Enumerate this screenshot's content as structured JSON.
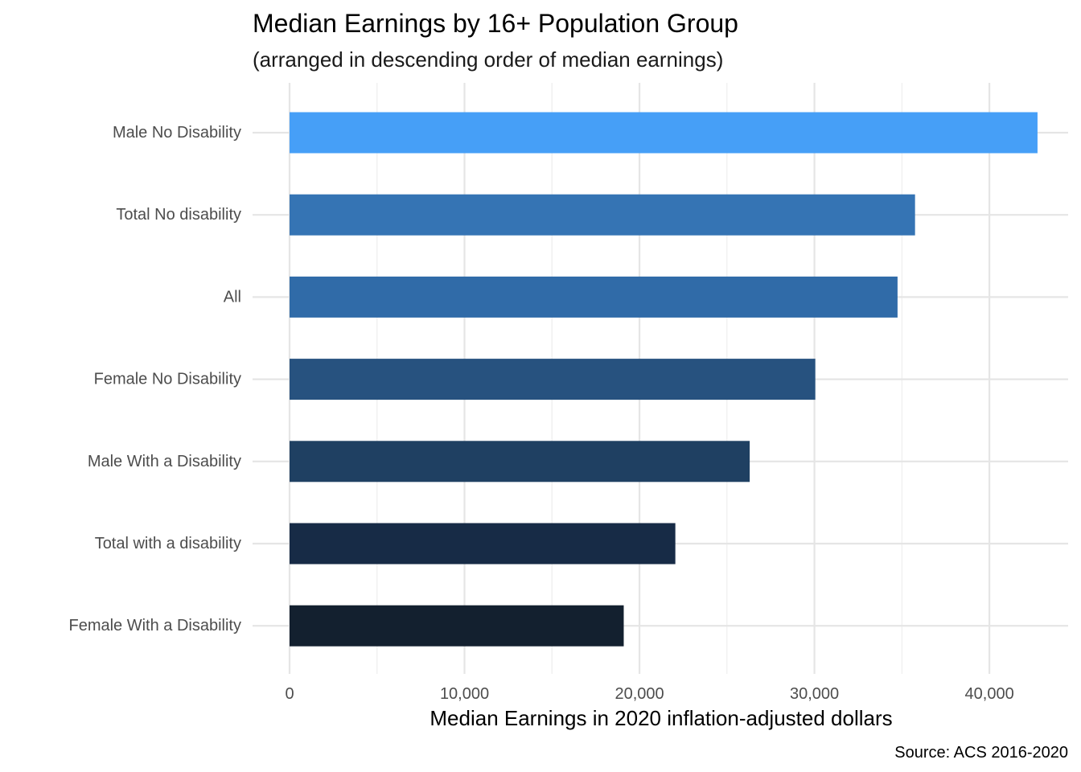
{
  "chart_data": {
    "type": "bar",
    "orientation": "horizontal",
    "title": "Median Earnings by 16+ Population Group",
    "subtitle": "(arranged in descending order of median earnings)",
    "xlabel": "Median Earnings in 2020 inflation-adjusted dollars",
    "ylabel": "",
    "caption": "Source: ACS 2016-2020",
    "xlim": [
      0,
      44500
    ],
    "x_ticks": [
      0,
      10000,
      20000,
      30000,
      40000
    ],
    "x_tick_labels": [
      "0",
      "10,000",
      "20,000",
      "30,000",
      "40,000"
    ],
    "grid": true,
    "legend": "none",
    "categories": [
      "Male No Disability",
      "Total No disability",
      "All",
      "Female No Disability",
      "Male With a Disability",
      "Total with a disability",
      "Female With a Disability"
    ],
    "values": [
      42750,
      35750,
      34750,
      30050,
      26300,
      22050,
      19100
    ],
    "colors": [
      "#469ff7",
      "#3574b4",
      "#306ba8",
      "#27527f",
      "#1f4062",
      "#172b46",
      "#13202f"
    ]
  }
}
